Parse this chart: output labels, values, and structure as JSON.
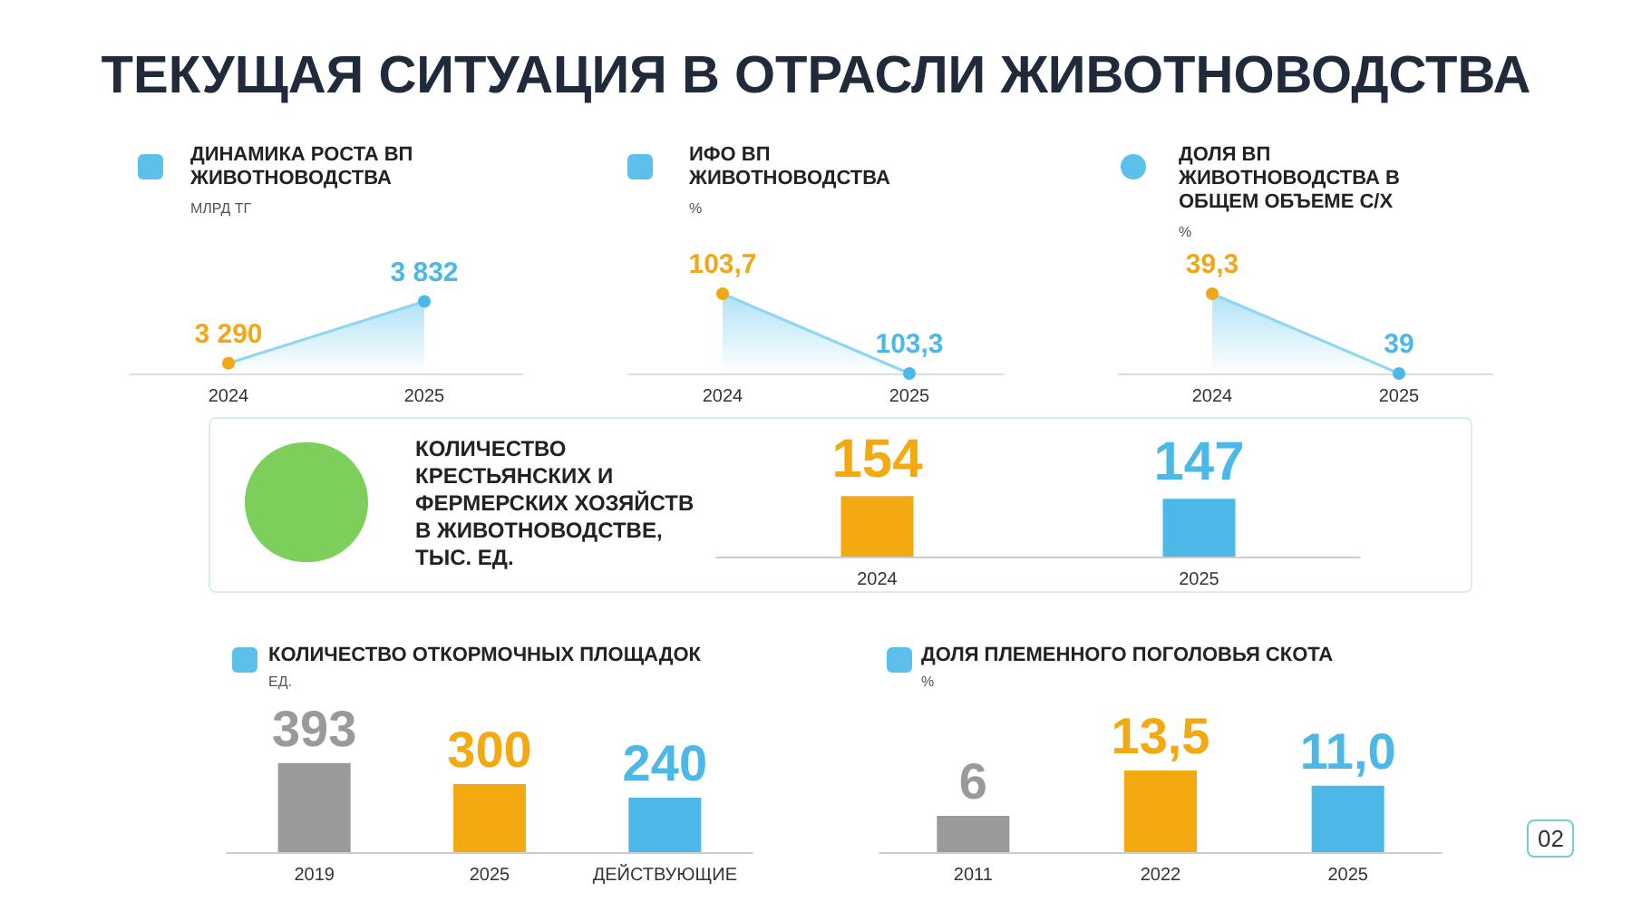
{
  "chart_data": [
    {
      "type": "other",
      "title": "ТЕКУЩАЯ СИТУАЦИЯ В ОТРАСЛИ ЖИВОТНОВОДСТВА",
      "annotations": [
        "02"
      ]
    },
    {
      "type": "area",
      "title": "ДИНАМИКА РОСТА ВП ЖИВОТНОВОДСТВА",
      "ylabel": "МЛРД ТГ",
      "categories": [
        "2024",
        "2025"
      ],
      "color": "#8fd6f2",
      "colors": [
        "#f0a818",
        "#4cb8e8"
      ],
      "values": [
        3290,
        3832
      ],
      "value_labels": [
        "3 290",
        "3 832"
      ]
    },
    {
      "type": "area",
      "title": "ИФО ВП ЖИВОТНОВОДСТВА",
      "ylabel": "%",
      "categories": [
        "2024",
        "2025"
      ],
      "color": "#8fd6f2",
      "colors": [
        "#f0a818",
        "#4cb8e8"
      ],
      "values": [
        103.7,
        103.3
      ],
      "value_labels": [
        "103,7",
        "103,3"
      ]
    },
    {
      "type": "area",
      "title": "ДОЛЯ ВП ЖИВОТНОВОДСТВА В ОБЩЕМ ОБЪЕМЕ С/Х",
      "ylabel": "%",
      "categories": [
        "2024",
        "2025"
      ],
      "color": "#8fd6f2",
      "colors": [
        "#f0a818",
        "#4cb8e8"
      ],
      "values": [
        39.3,
        39
      ],
      "value_labels": [
        "39,3",
        "39"
      ]
    },
    {
      "type": "bar",
      "title": "КОЛИЧЕСТВО КРЕСТЬЯНСКИХ И ФЕРМЕРСКИХ ХОЗЯЙСТВ В ЖИВОТНОВОДСТВЕ, ТЫС. ЕД.",
      "categories": [
        "2024",
        "2025"
      ],
      "colors": [
        "#f2aa10",
        "#4cb8e8"
      ],
      "values": [
        154,
        147
      ],
      "value_labels": [
        "154",
        "147"
      ]
    },
    {
      "type": "bar",
      "title": "КОЛИЧЕСТВО ОТКОРМОЧНЫХ ПЛОЩАДОК",
      "ylabel": "ЕД.",
      "categories": [
        "2019",
        "2025",
        "ДЕЙСТВУЮЩИЕ"
      ],
      "colors": [
        "#9a9a9a",
        "#f2aa10",
        "#4cb8e8"
      ],
      "values": [
        393,
        300,
        240
      ],
      "value_labels": [
        "393",
        "300",
        "240"
      ]
    },
    {
      "type": "bar",
      "title": "ДОЛЯ ПЛЕМЕННОГО ПОГОЛОВЬЯ СКОТА",
      "ylabel": "%",
      "categories": [
        "2011",
        "2022",
        "2025"
      ],
      "colors": [
        "#9a9a9a",
        "#f2aa10",
        "#4cb8e8"
      ],
      "values": [
        6,
        13.5,
        11.0
      ],
      "value_labels": [
        "6",
        "13,5",
        "11,0"
      ]
    }
  ]
}
